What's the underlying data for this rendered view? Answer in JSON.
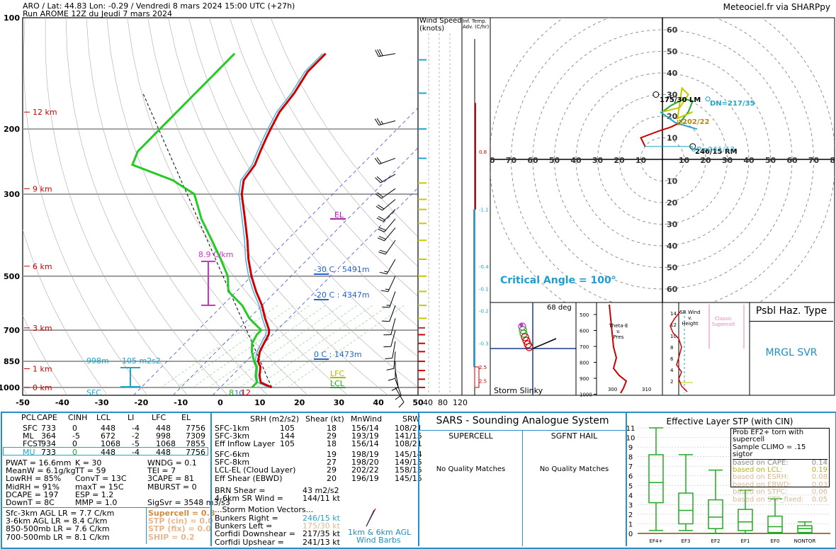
{
  "header": {
    "line1": "ARO / Lat: 44.83 Lon: -0.29 / Vendredi 8 mars 2024 15:00 UTC (+27h)",
    "line2": "Run AROME 12Z du Jeudi 7 mars 2024",
    "credit": "Meteociel.fr via SHARPpy"
  },
  "colors": {
    "temperature": "#cc0000",
    "dewpoint": "#22cc22",
    "virtual_temp": "#4fb3d9",
    "isohume": "#9ad39a",
    "isotherm_dash": "#3b52d6",
    "dry_adiabat": "#000000",
    "height_labels": "#cc0000",
    "lapse_rate": "#cc33cc",
    "el_marker": "#aa22aa",
    "lfc_lcl": "#b8b800",
    "cyan_text": "#1fa6c9",
    "critical_angle": "#1f9ecf"
  },
  "chart_data": {
    "type": "skew-t",
    "pressure_ticks": [
      "100",
      "200",
      "300",
      "500",
      "700",
      "850",
      "1000"
    ],
    "pressure_levels": [
      100,
      200,
      300,
      500,
      700,
      850,
      1000
    ],
    "temp_ticks": [
      "-50",
      "-40",
      "-30",
      "-20",
      "-10",
      "0",
      "10",
      "20",
      "30",
      "40",
      "50"
    ],
    "height_labels": [
      {
        "text": "12 km",
        "p": 180
      },
      {
        "text": "9 km",
        "p": 290
      },
      {
        "text": "6 km",
        "p": 470
      },
      {
        "text": "3 km",
        "p": 690
      },
      {
        "text": "1 km",
        "p": 890
      },
      {
        "text": "0 km",
        "p": 1000
      }
    ],
    "temperature_profile": [
      {
        "p": 1000,
        "t": 13
      },
      {
        "p": 970,
        "t": 9
      },
      {
        "p": 930,
        "t": 7
      },
      {
        "p": 880,
        "t": 5
      },
      {
        "p": 850,
        "t": 3
      },
      {
        "p": 800,
        "t": 1
      },
      {
        "p": 760,
        "t": 0
      },
      {
        "p": 720,
        "t": -1
      },
      {
        "p": 700,
        "t": -2
      },
      {
        "p": 650,
        "t": -6
      },
      {
        "p": 600,
        "t": -10
      },
      {
        "p": 550,
        "t": -15
      },
      {
        "p": 500,
        "t": -20
      },
      {
        "p": 450,
        "t": -25
      },
      {
        "p": 400,
        "t": -30
      },
      {
        "p": 350,
        "t": -36
      },
      {
        "p": 300,
        "t": -43
      },
      {
        "p": 275,
        "t": -46
      },
      {
        "p": 250,
        "t": -47
      },
      {
        "p": 230,
        "t": -49
      },
      {
        "p": 210,
        "t": -51
      },
      {
        "p": 200,
        "t": -52
      },
      {
        "p": 180,
        "t": -54
      },
      {
        "p": 160,
        "t": -55
      },
      {
        "p": 140,
        "t": -57
      },
      {
        "p": 125,
        "t": -57
      }
    ],
    "dewpoint_profile": [
      {
        "p": 1000,
        "t": 8
      },
      {
        "p": 970,
        "t": 8
      },
      {
        "p": 930,
        "t": 6
      },
      {
        "p": 880,
        "t": 4
      },
      {
        "p": 850,
        "t": 2
      },
      {
        "p": 800,
        "t": -1
      },
      {
        "p": 760,
        "t": -3
      },
      {
        "p": 720,
        "t": -4
      },
      {
        "p": 700,
        "t": -4
      },
      {
        "p": 650,
        "t": -10
      },
      {
        "p": 600,
        "t": -15
      },
      {
        "p": 550,
        "t": -22
      },
      {
        "p": 500,
        "t": -26
      },
      {
        "p": 450,
        "t": -32
      },
      {
        "p": 400,
        "t": -39
      },
      {
        "p": 350,
        "t": -47
      },
      {
        "p": 300,
        "t": -55
      },
      {
        "p": 275,
        "t": -64
      },
      {
        "p": 250,
        "t": -78
      },
      {
        "p": 230,
        "t": -80
      },
      {
        "p": 210,
        "t": -80
      },
      {
        "p": 200,
        "t": -80
      },
      {
        "p": 180,
        "t": -80
      },
      {
        "p": 160,
        "t": -80
      },
      {
        "p": 140,
        "t": -80
      },
      {
        "p": 125,
        "t": -80
      }
    ],
    "annotations": {
      "el": "EL",
      "lfc": "LFC",
      "lcl": "LCL",
      "sfc": "SFC",
      "lapse_rate_label": "8.9 C/km",
      "m30c": "-30 C : 5491m",
      "m20c": "-20 C : 4347m",
      "zeroc": "0 C : 1473m",
      "esrh_label": "105 m2s2",
      "esrh_top": "998m",
      "surface_t": "12",
      "surface_td": "8",
      "surface_tw": "10"
    }
  },
  "wind_speed": {
    "title": "Wind Speed",
    "unit": "(knots)",
    "ticks": [
      "40",
      "80",
      "120"
    ]
  },
  "inferred_temp": {
    "title": "Inf. Temp.",
    "subtitle": "Adv. (C/hr)",
    "values": [
      "0.8",
      "-1.1",
      "-0.4",
      "-0.1",
      "-0.2",
      "-0.3",
      "2.5",
      "2.5"
    ]
  },
  "hodograph": {
    "rings": [
      "10",
      "20",
      "30",
      "40",
      "50",
      "60",
      "70",
      "80"
    ],
    "y_labels_up": [
      "10",
      "20",
      "30",
      "40",
      "50",
      "60"
    ],
    "y_labels_down": [
      "10",
      "20",
      "30",
      "40",
      "50",
      "60"
    ],
    "x_labels_left": [
      "80",
      "70",
      "60",
      "50",
      "40",
      "30",
      "20",
      "10"
    ],
    "x_labels_right": [
      "10",
      "20",
      "30",
      "40",
      "50",
      "60",
      "70",
      "80"
    ],
    "lm_label": "175/30 LM",
    "rm_label": "246/15 RM",
    "dn_label": "DN=217/35",
    "mean_label": "202/22",
    "up_label": "UP=241/13",
    "critical_angle": "Critical Angle = 100°"
  },
  "storm_slinky": {
    "title": "Storm Slinky",
    "angle": "68 deg"
  },
  "theta_e": {
    "title": "Theta-E",
    "sub1": "v.",
    "sub2": "Pres",
    "p_ticks": [
      "500",
      "600",
      "700",
      "800",
      "900",
      "1000"
    ],
    "x_ticks": [
      "300",
      "310"
    ]
  },
  "sr_wind": {
    "title": "SR Wind",
    "sub1": "v.",
    "sub2": "Height",
    "classic": "Classic",
    "supercell": "Supercell",
    "h_ticks": [
      "14",
      "12",
      "10",
      "8",
      "6",
      "4",
      "2"
    ]
  },
  "hazard": {
    "title": "Psbl Haz. Type",
    "value": "MRGL SVR"
  },
  "parcel_table": {
    "headers": [
      "PCL",
      "CAPE",
      "CINH",
      "LCL",
      "LI",
      "LFC",
      "EL"
    ],
    "rows": [
      [
        "SFC",
        "733",
        "0",
        "448",
        "-4",
        "448",
        "7756"
      ],
      [
        "ML",
        "364",
        "-5",
        "672",
        "-2",
        "998",
        "7309"
      ],
      [
        "FCST",
        "934",
        "0",
        "1068",
        "-5",
        "1068",
        "7855"
      ],
      [
        "MU",
        "733",
        "0",
        "448",
        "-4",
        "448",
        "7756"
      ]
    ]
  },
  "thermo": {
    "col1": [
      "PWAT = 16.6mm",
      "MeanW = 6.1g/kg",
      "LowRH = 85%",
      "MidRH = 91%",
      "DCAPE = 197",
      "DownT = 8C"
    ],
    "col2": [
      "K = 30",
      "TT = 59",
      "ConvT = 13C",
      "maxT = 15C",
      "ESP = 1.2",
      "MMP = 1.0"
    ],
    "col3": [
      "WNDG = 0.1",
      "TEI = 7",
      "3CAPE = 81",
      "MBURST = 0",
      "",
      "SigSvr = 3548 m3/s3"
    ],
    "lapse": [
      "Sfc-3km AGL LR = 7.7 C/km",
      "3-6km AGL LR = 8.4 C/km",
      "850-500mb LR = 7.6 C/km",
      "700-500mb LR = 8.1 C/km"
    ],
    "composite": [
      "Supercell = 0.8",
      "STP (cin) = 0.0",
      "STP (fix) = 0.0",
      "SHIP = 0.2"
    ]
  },
  "kinematics": {
    "headers": [
      "SRH (m2/s2)",
      "Shear (kt)",
      "MnWind",
      "SRW"
    ],
    "rows1": [
      [
        "SFC-1km",
        "105",
        "18",
        "156/14",
        "108/21"
      ],
      [
        "SFC-3km",
        "144",
        "29",
        "193/19",
        "141/15"
      ],
      [
        "Eff Inflow Layer",
        "105",
        "18",
        "156/14",
        "108/21"
      ]
    ],
    "rows2": [
      [
        "SFC-6km",
        "",
        "19",
        "198/19",
        "145/14"
      ],
      [
        "SFC-8km",
        "",
        "27",
        "198/20",
        "149/15"
      ],
      [
        "LCL-EL (Cloud Layer)",
        "",
        "29",
        "202/22",
        "158/15"
      ],
      [
        "Eff Shear (EBWD)",
        "",
        "20",
        "196/19",
        "145/15"
      ]
    ],
    "brn_label": "BRN Shear =",
    "brn_value": "43 m2/s2",
    "srw_label": "4-6km SR Wind =",
    "srw_value": "144/11 kt",
    "storm_motion": "...Storm Motion Vectors...",
    "motion": [
      {
        "label": "Bunkers Right =",
        "value": "246/15 kt"
      },
      {
        "label": "Bunkers Left =",
        "value": "175/30 kt"
      },
      {
        "label": "Corfidi Downshear =",
        "value": "217/35 kt"
      },
      {
        "label": "Corfidi Upshear =",
        "value": "241/13 kt"
      }
    ],
    "barbs_label1": "1km & 6km AGL",
    "barbs_label2": "Wind Barbs"
  },
  "sars": {
    "title": "SARS - Sounding Analogue System",
    "supercell": "SUPERCELL",
    "sgfnt": "SGFNT HAIL",
    "no_match": "No Quality Matches"
  },
  "stp": {
    "title": "Effective Layer STP (with CIN)",
    "y_ticks": [
      "0",
      "1",
      "2",
      "3",
      "4",
      "5",
      "6",
      "7",
      "8",
      "9",
      "10",
      "11"
    ],
    "categories": [
      "EF4+",
      "EF3",
      "EF2",
      "EF1",
      "EF0",
      "NONTOR"
    ],
    "boxes": [
      {
        "min": 0.3,
        "q1": 3.2,
        "med": 5.3,
        "q3": 8.2,
        "max": 11
      },
      {
        "min": 0.3,
        "q1": 1.0,
        "med": 2.4,
        "q3": 4.2,
        "max": 8.2
      },
      {
        "min": 0,
        "q1": 0.5,
        "med": 1.7,
        "q3": 3.5,
        "max": 6.6
      },
      {
        "min": 0,
        "q1": 0.3,
        "med": 1.2,
        "q3": 2.5,
        "max": 4.5
      },
      {
        "min": 0,
        "q1": 0.1,
        "med": 0.7,
        "q3": 1.8,
        "max": 3.6
      },
      {
        "min": 0,
        "q1": 0.1,
        "med": 0.5,
        "q3": 0.8,
        "max": 1.2
      }
    ],
    "prob_title1": "Prob EF2+ torn with supercell",
    "prob_title2": "Sample CLIMO = .15 sigtor",
    "prob_rows": [
      {
        "label": "based on CAPE:",
        "value": "0.14"
      },
      {
        "label": "based on LCL:",
        "value": "0.19"
      },
      {
        "label": "based on ESRH:",
        "value": "0.08"
      },
      {
        "label": "based on EBWD:",
        "value": "0.03"
      },
      {
        "label": "based on STPC:",
        "value": "0.06"
      },
      {
        "label": "based on STP_fixed:",
        "value": "0.05"
      }
    ]
  }
}
